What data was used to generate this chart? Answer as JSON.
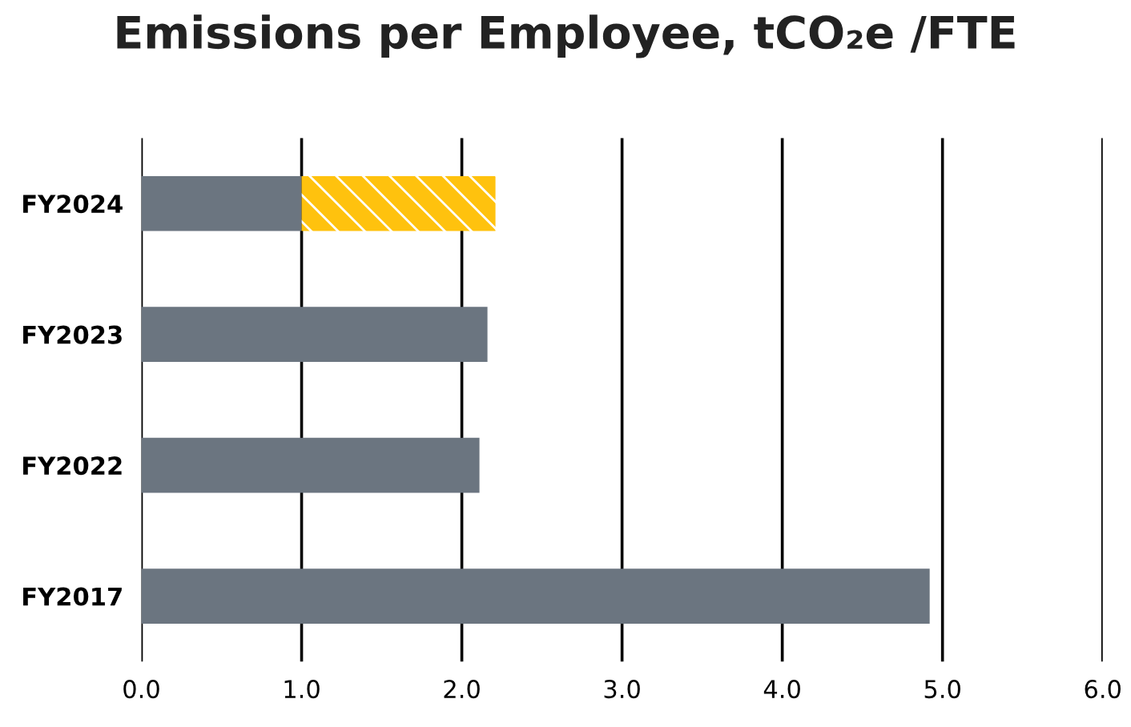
{
  "chart_data": {
    "type": "bar",
    "orientation": "horizontal",
    "stacked": true,
    "title": "Emissions per Employee, tCO₂e /FTE",
    "categories": [
      "FY2024",
      "FY2023",
      "FY2022",
      "FY2017"
    ],
    "series": [
      {
        "color": "#6b7580",
        "values": [
          1.0,
          2.16,
          2.11,
          4.92
        ]
      },
      {
        "color": "#ffc20e",
        "values": [
          1.21,
          null,
          null,
          null
        ]
      }
    ],
    "xlim": [
      0,
      6.0
    ],
    "xticks": [
      {
        "value": 0,
        "label": "0.0"
      },
      {
        "value": 1,
        "label": "1.0"
      },
      {
        "value": 2,
        "label": "2.0"
      },
      {
        "value": 3,
        "label": "3.0"
      },
      {
        "value": 4,
        "label": "4.0"
      },
      {
        "value": 5,
        "label": "5.0"
      },
      {
        "value": 6,
        "label": "6.0"
      }
    ],
    "grid": "x",
    "legend": false
  }
}
